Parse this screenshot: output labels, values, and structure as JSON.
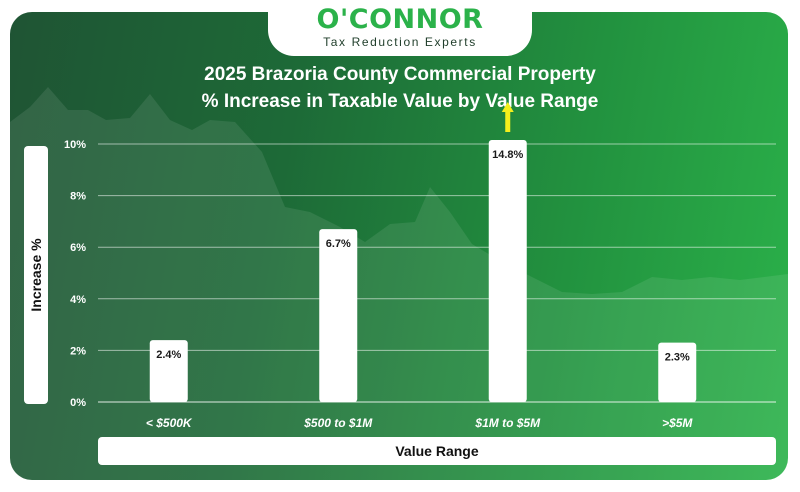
{
  "brand": {
    "name": "O'CONNOR",
    "tagline": "Tax Reduction Experts"
  },
  "title_line1": "2025 Brazoria County Commercial Property",
  "title_line2": "% Increase in Taxable Value by Value Range",
  "colors": {
    "bar": "#ffffff",
    "overflow_arrow": "#f5ef1c",
    "brand_green": "#2bb24a",
    "label_text": "#1a1a1a"
  },
  "chart_data": {
    "type": "bar",
    "title": "2025 Brazoria County Commercial Property % Increase in Taxable Value by Value Range",
    "xlabel": "Value Range",
    "ylabel": "Increase %",
    "categories": [
      "< $500K",
      "$500 to $1M",
      "$1M to $5M",
      ">$5M"
    ],
    "values": [
      2.4,
      6.7,
      14.8,
      2.3
    ],
    "value_labels": [
      "2.4%",
      "6.7%",
      "14.8%",
      "2.3%"
    ],
    "ylim": [
      0,
      10
    ],
    "yticks": [
      0,
      2,
      4,
      6,
      8,
      10
    ],
    "ytick_labels": [
      "0%",
      "2%",
      "4%",
      "6%",
      "8%",
      "10%"
    ],
    "grid": true,
    "clipped_above_axis": [
      2
    ]
  }
}
